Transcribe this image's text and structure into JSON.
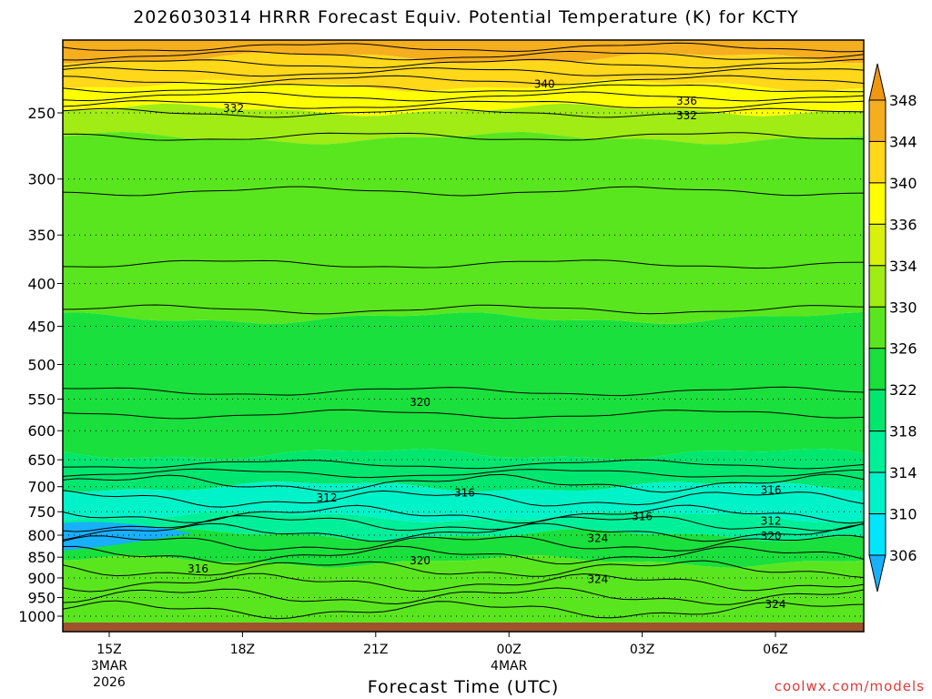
{
  "title": "2026030314 HRRR Forecast Equiv. Potential Temperature (K) for KCTY",
  "xlabel": "Forecast Time (UTC)",
  "credit": "coolwx.com/models",
  "chart_data": {
    "type": "heatmap",
    "title": "2026030314 HRRR Forecast Equiv. Potential Temperature (K) for KCTY",
    "xlabel": "Forecast Time (UTC)",
    "ylabel": "",
    "x_ticks": [
      {
        "label": "15Z",
        "sub": [
          "3MAR",
          "2026"
        ],
        "hour": 15
      },
      {
        "label": "18Z",
        "sub": [],
        "hour": 18
      },
      {
        "label": "21Z",
        "sub": [],
        "hour": 21
      },
      {
        "label": "00Z",
        "sub": [
          "4MAR"
        ],
        "hour": 24
      },
      {
        "label": "03Z",
        "sub": [],
        "hour": 27
      },
      {
        "label": "06Z",
        "sub": [],
        "hour": 30
      }
    ],
    "xlim": [
      14,
      32
    ],
    "y_ticks": [
      250,
      300,
      350,
      400,
      450,
      500,
      550,
      600,
      650,
      700,
      750,
      800,
      850,
      900,
      950,
      1000
    ],
    "ylim": [
      1015,
      200
    ],
    "y_scale": "log",
    "colorbar": {
      "levels": [
        306,
        310,
        314,
        318,
        322,
        326,
        330,
        334,
        336,
        340,
        344,
        348
      ],
      "colors": [
        "#17b0ff",
        "#00e6ff",
        "#00f2c8",
        "#00f099",
        "#00e66e",
        "#19e03c",
        "#5ae61e",
        "#a0ec14",
        "#d8f00a",
        "#ffff00",
        "#ffd81a",
        "#f5ae1e",
        "#f0960f"
      ]
    },
    "bands": [
      {
        "p_top": 200,
        "p_bot": 215,
        "value": 346
      },
      {
        "p_top": 215,
        "p_bot": 232,
        "value": 340
      },
      {
        "p_top": 232,
        "p_bot": 248,
        "value": 336
      },
      {
        "p_top": 248,
        "p_bot": 268,
        "value": 332
      },
      {
        "p_top": 268,
        "p_bot": 440,
        "value": 328
      },
      {
        "p_top": 440,
        "p_bot": 640,
        "value": 322
      },
      {
        "p_top": 640,
        "p_bot": 700,
        "value": 318
      },
      {
        "p_top": 700,
        "p_bot": 760,
        "value": 313
      },
      {
        "p_top": 760,
        "p_bot": 800,
        "value": 316
      },
      {
        "p_top": 800,
        "p_bot": 860,
        "value": 322
      },
      {
        "p_top": 860,
        "p_bot": 1015,
        "value": 326
      }
    ],
    "contour_labels": [
      {
        "text": "340",
        "x_hour": 24.8,
        "p": 231
      },
      {
        "text": "332",
        "x_hour": 17.8,
        "p": 247
      },
      {
        "text": "336",
        "x_hour": 28.0,
        "p": 242
      },
      {
        "text": "332",
        "x_hour": 28.0,
        "p": 252
      },
      {
        "text": "320",
        "x_hour": 22.0,
        "p": 555
      },
      {
        "text": "316",
        "x_hour": 23.0,
        "p": 712
      },
      {
        "text": "316",
        "x_hour": 29.9,
        "p": 707
      },
      {
        "text": "312",
        "x_hour": 19.9,
        "p": 722
      },
      {
        "text": "316",
        "x_hour": 27.0,
        "p": 760
      },
      {
        "text": "312",
        "x_hour": 29.9,
        "p": 770
      },
      {
        "text": "320",
        "x_hour": 29.9,
        "p": 802
      },
      {
        "text": "324",
        "x_hour": 26.0,
        "p": 807
      },
      {
        "text": "320",
        "x_hour": 22.0,
        "p": 858
      },
      {
        "text": "316",
        "x_hour": 17.0,
        "p": 878
      },
      {
        "text": "324",
        "x_hour": 26.0,
        "p": 903
      },
      {
        "text": "324",
        "x_hour": 30.0,
        "p": 968
      }
    ],
    "grid": true,
    "legend": "right"
  }
}
